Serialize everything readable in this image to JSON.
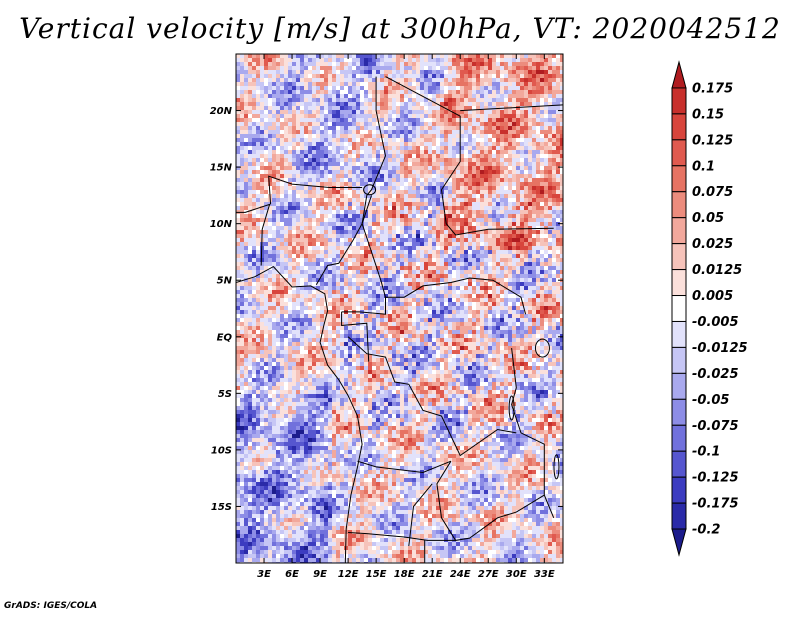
{
  "title": "Vertical velocity [m/s] at 300hPa, VT: 2020042512",
  "credit": "GrADS: IGES/COLA",
  "colors": {
    "land_outline": "#000000",
    "background": "#ffffff"
  },
  "map": {
    "region": "Central Africa",
    "lon_range": [
      0,
      35
    ],
    "lat_range": [
      -20,
      25
    ],
    "lat_ticks": [
      {
        "value": 20,
        "label": "20N"
      },
      {
        "value": 15,
        "label": "15N"
      },
      {
        "value": 10,
        "label": "10N"
      },
      {
        "value": 5,
        "label": "5N"
      },
      {
        "value": 0,
        "label": "EQ"
      },
      {
        "value": -5,
        "label": "5S"
      },
      {
        "value": -10,
        "label": "10S"
      },
      {
        "value": -15,
        "label": "15S"
      }
    ],
    "lon_ticks": [
      {
        "value": 3,
        "label": "3E"
      },
      {
        "value": 6,
        "label": "6E"
      },
      {
        "value": 9,
        "label": "9E"
      },
      {
        "value": 12,
        "label": "12E"
      },
      {
        "value": 15,
        "label": "15E"
      },
      {
        "value": 18,
        "label": "18E"
      },
      {
        "value": 21,
        "label": "21E"
      },
      {
        "value": 24,
        "label": "24E"
      },
      {
        "value": 27,
        "label": "27E"
      },
      {
        "value": 30,
        "label": "30E"
      },
      {
        "value": 33,
        "label": "33E"
      }
    ]
  },
  "colorbar": {
    "labels": [
      "0.175",
      "0.15",
      "0.125",
      "0.1",
      "0.075",
      "0.05",
      "0.025",
      "0.0125",
      "0.005",
      "-0.005",
      "-0.0125",
      "-0.025",
      "-0.05",
      "-0.075",
      "-0.1",
      "-0.125",
      "-0.175",
      "-0.2"
    ],
    "colors": [
      "#b01c20",
      "#c8302c",
      "#d8453c",
      "#e05a4f",
      "#e67363",
      "#ec8c7d",
      "#f2a89c",
      "#f6c3ba",
      "#fbe0db",
      "#ffffff",
      "#e2e2fb",
      "#c6c6f5",
      "#a9a9ee",
      "#8d8de6",
      "#7171dc",
      "#5656cf",
      "#3c3cc0",
      "#2a2aa8",
      "#1c1c8c"
    ]
  }
}
